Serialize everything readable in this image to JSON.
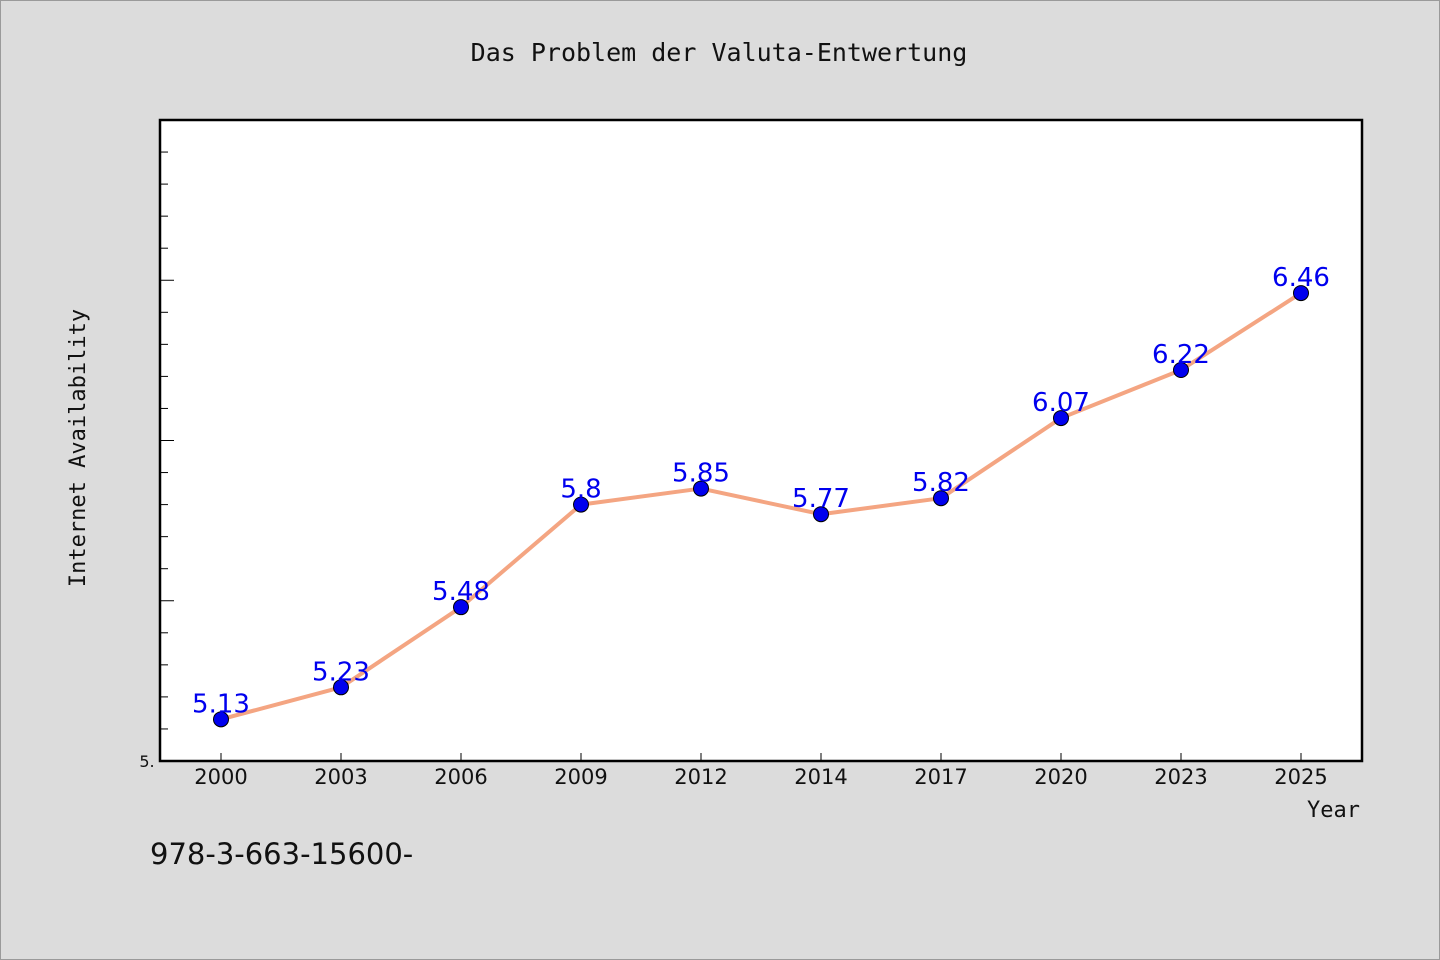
{
  "chart_data": {
    "type": "line",
    "title": "Das Problem der Valuta-Entwertung",
    "xlabel": "Year",
    "ylabel": "Internet Availability",
    "categories": [
      "2000",
      "2003",
      "2006",
      "2009",
      "2012",
      "2014",
      "2017",
      "2020",
      "2023",
      "2025"
    ],
    "series": [
      {
        "values": [
          5.13,
          5.23,
          5.48,
          5.8,
          5.85,
          5.77,
          5.82,
          6.07,
          6.22,
          6.46
        ]
      }
    ],
    "data_labels": [
      "5.13",
      "5.23",
      "5.48",
      "5.8",
      "5.85",
      "5.77",
      "5.82",
      "6.07",
      "6.22",
      "6.46]"
    ],
    "y_tick_label": "5.",
    "ylim": [
      5.0,
      7.0
    ],
    "y_ticks_major": [
      5.0,
      5.5,
      6.0,
      6.5,
      7.0
    ],
    "y_minor_step": 0.1,
    "grid": false,
    "line_color": "#f4a582",
    "marker_color": "#0000ee",
    "label_color": "#0000ee",
    "background": "#dcdcdc",
    "plot_background": "#ffffff"
  },
  "footer_note": "978-3-663-15600-"
}
